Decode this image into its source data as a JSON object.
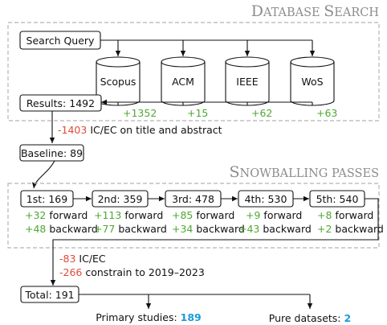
{
  "colors": {
    "added": "#4ea832",
    "removed": "#e04a3a",
    "highlight": "#1a9bd7",
    "frame": "#b4b4b4",
    "ink": "#111111"
  },
  "database_search": {
    "title_initial": "D",
    "title_rest": "ATABASE ",
    "title_initial2": "S",
    "title_rest2": "EARCH",
    "query": "Search Query",
    "databases": [
      {
        "name": "Scopus",
        "added": "+1352"
      },
      {
        "name": "ACM",
        "added": "+15"
      },
      {
        "name": "IEEE",
        "added": "+62"
      },
      {
        "name": "WoS",
        "added": "+63"
      }
    ],
    "results": "Results: 1492"
  },
  "screening": {
    "removed": "-1403",
    "criteria": "IC/EC on title and abstract",
    "baseline": "Baseline: 89"
  },
  "snowballing": {
    "title_initial": "S",
    "title_rest": "NOWBALLING PASSES",
    "passes": [
      {
        "label": "1st: 169",
        "forward": "+32",
        "backward": "+48"
      },
      {
        "label": "2nd: 359",
        "forward": "+113",
        "backward": "+77"
      },
      {
        "label": "3rd: 478",
        "forward": "+85",
        "backward": "+34"
      },
      {
        "label": "4th: 530",
        "forward": "+9",
        "backward": "+43"
      },
      {
        "label": "5th: 540",
        "forward": "+8",
        "backward": "+2"
      }
    ],
    "forward_label": "forward",
    "backward_label": "backward"
  },
  "final_filter": {
    "removed1": "-83",
    "label1": "IC/EC",
    "removed2": "-266",
    "label2": "constrain to 2019–2023"
  },
  "outcome": {
    "total": "Total: 191",
    "primary_label": "Primary studies:",
    "primary_value": "189",
    "datasets_label": "Pure datasets:",
    "datasets_value": "2"
  }
}
